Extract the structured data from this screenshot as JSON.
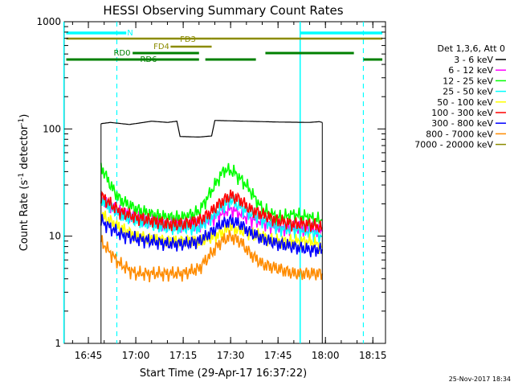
{
  "chart_data": {
    "type": "line",
    "title": "HESSI Observing Summary Count Rates",
    "xlabel": "Start Time (29-Apr-17 16:37:22)",
    "ylabel": "Count Rate (s",
    "ylabel_sup": "-1",
    "ylabel_rest": " detector",
    "ylabel_sup2": "-1",
    "ylabel_end": ")",
    "yscale": "log",
    "ylim": [
      1,
      1000
    ],
    "xlim": [
      "16:37",
      "18:19"
    ],
    "x_ticks": [
      "16:45",
      "17:00",
      "17:15",
      "17:30",
      "17:45",
      "18:00",
      "18:15"
    ],
    "y_ticks": [
      "1",
      "10",
      "100",
      "1000"
    ],
    "legend_title": "Det 1,3,6, Att 0",
    "legend_placement": "right",
    "series": [
      {
        "name": "3 - 6 keV",
        "color": "#000000",
        "times": [
          "16:49",
          "16:52",
          "16:58",
          "17:05",
          "17:10",
          "17:13",
          "17:14",
          "17:20",
          "17:24",
          "17:25",
          "17:35",
          "17:45",
          "17:55",
          "17:58",
          "17:59"
        ],
        "values": [
          112,
          115,
          110,
          118,
          115,
          118,
          85,
          84,
          86,
          120,
          118,
          116,
          115,
          117,
          115
        ]
      },
      {
        "name": "6 - 12 keV",
        "color": "#ff00ff",
        "times": [
          "16:49",
          "16:55",
          "17:00",
          "17:10",
          "17:20",
          "17:25",
          "17:30",
          "17:35",
          "17:45",
          "17:55",
          "17:59"
        ],
        "values": [
          22,
          17,
          15,
          13,
          13,
          15,
          18,
          15,
          12,
          12,
          11
        ]
      },
      {
        "name": "12 - 25 keV",
        "color": "#00ff00",
        "times": [
          "16:49",
          "16:52",
          "16:55",
          "17:00",
          "17:05",
          "17:10",
          "17:15",
          "17:20",
          "17:25",
          "17:28",
          "17:31",
          "17:35",
          "17:40",
          "17:45",
          "17:50",
          "17:55",
          "17:59"
        ],
        "values": [
          45,
          30,
          22,
          18,
          16,
          15,
          15,
          17,
          30,
          42,
          40,
          30,
          18,
          15,
          16,
          15,
          14
        ]
      },
      {
        "name": "25 - 50 keV",
        "color": "#00ffff",
        "times": [
          "16:49",
          "16:55",
          "17:00",
          "17:10",
          "17:20",
          "17:25",
          "17:30",
          "17:35",
          "17:45",
          "17:55",
          "17:59"
        ],
        "values": [
          22,
          16,
          14,
          12,
          12,
          16,
          22,
          17,
          12,
          11,
          10
        ]
      },
      {
        "name": "50 - 100 keV",
        "color": "#ffff00",
        "times": [
          "16:49",
          "16:55",
          "17:00",
          "17:10",
          "17:20",
          "17:25",
          "17:30",
          "17:35",
          "17:45",
          "17:55",
          "17:59"
        ],
        "values": [
          16,
          12,
          10,
          9,
          9,
          10,
          12,
          11,
          9,
          9,
          8
        ]
      },
      {
        "name": "100 - 300 keV",
        "color": "#ff0000",
        "times": [
          "16:49",
          "16:52",
          "16:55",
          "17:00",
          "17:05",
          "17:10",
          "17:15",
          "17:20",
          "17:24",
          "17:27",
          "17:30",
          "17:33",
          "17:36",
          "17:40",
          "17:45",
          "17:50",
          "17:55",
          "17:59"
        ],
        "values": [
          24,
          20,
          17,
          15,
          14,
          13,
          13,
          14,
          17,
          21,
          24,
          22,
          18,
          16,
          14,
          13,
          13,
          12
        ]
      },
      {
        "name": "300 - 800 keV",
        "color": "#0000ff",
        "times": [
          "16:49",
          "16:52",
          "16:55",
          "17:00",
          "17:05",
          "17:10",
          "17:15",
          "17:20",
          "17:24",
          "17:27",
          "17:30",
          "17:33",
          "17:36",
          "17:40",
          "17:45",
          "17:50",
          "17:55",
          "17:59"
        ],
        "values": [
          14,
          12,
          10.5,
          9.5,
          9,
          8.5,
          8.5,
          9,
          11,
          13,
          14,
          13,
          11,
          9.5,
          8.5,
          8,
          7.5,
          7.5
        ]
      },
      {
        "name": "800 - 7000 keV",
        "color": "#ff8c00",
        "times": [
          "16:49",
          "16:52",
          "16:55",
          "17:00",
          "17:05",
          "17:10",
          "17:15",
          "17:20",
          "17:24",
          "17:27",
          "17:30",
          "17:33",
          "17:36",
          "17:40",
          "17:45",
          "17:50",
          "17:55",
          "17:59"
        ],
        "values": [
          9,
          7,
          5.5,
          4.5,
          4.5,
          4.5,
          4.5,
          5,
          7,
          9,
          10,
          9,
          7,
          5.5,
          5,
          4.5,
          4.5,
          4.5
        ]
      },
      {
        "name": "7000 - 20000 keV",
        "color": "#8b8b00",
        "times": [],
        "values": []
      }
    ],
    "vlines_solid": [
      "16:37",
      "17:52"
    ],
    "vlines_dashed": [
      "16:54",
      "18:12"
    ],
    "segment_labels": {
      "n": "N",
      "fd3": "FD3",
      "fd4": "FD4",
      "rd0": "RD0",
      "rd6": "RD6"
    },
    "colors": {
      "night": "#00ffff",
      "fd": "#8b8b00",
      "rd": "#008000",
      "axis": "#000000"
    }
  },
  "footer_date": "25-Nov-2017 18:34"
}
